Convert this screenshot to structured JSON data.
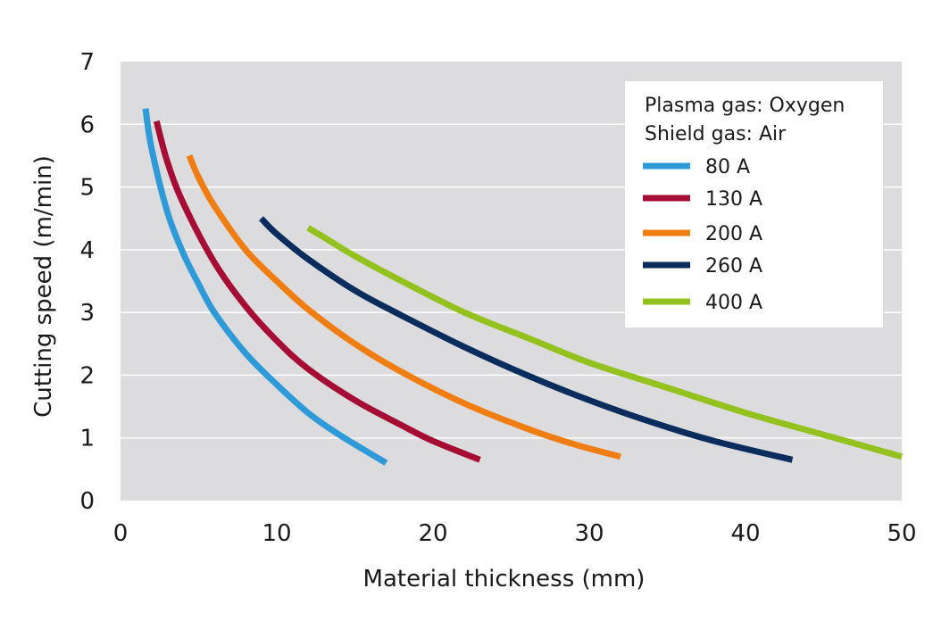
{
  "chart_data": {
    "type": "line",
    "xlabel": "Material thickness (mm)",
    "ylabel": "Cutting speed (m/min)",
    "xlim": [
      0,
      50
    ],
    "ylim": [
      0,
      7
    ],
    "xticks": [
      0,
      10,
      20,
      30,
      40,
      50
    ],
    "yticks": [
      0,
      1,
      2,
      3,
      4,
      5,
      6,
      7
    ],
    "grid": "horizontal",
    "background": "#dcdcde",
    "legend": {
      "placement": "top-right",
      "header_lines": [
        "Plasma gas: Oxygen",
        "Shield gas: Air"
      ]
    },
    "series": [
      {
        "name": "80 A",
        "color": "#2f9ad8",
        "points": [
          [
            1.6,
            6.25
          ],
          [
            2.0,
            5.6
          ],
          [
            3.0,
            4.6
          ],
          [
            4.0,
            3.95
          ],
          [
            5.0,
            3.45
          ],
          [
            6.0,
            3.0
          ],
          [
            8.0,
            2.35
          ],
          [
            10.0,
            1.85
          ],
          [
            12.0,
            1.4
          ],
          [
            14.0,
            1.05
          ],
          [
            17.0,
            0.6
          ]
        ]
      },
      {
        "name": "130 A",
        "color": "#a50d35",
        "points": [
          [
            2.3,
            6.05
          ],
          [
            3.0,
            5.4
          ],
          [
            4.0,
            4.75
          ],
          [
            6.0,
            3.8
          ],
          [
            8.0,
            3.1
          ],
          [
            10.0,
            2.55
          ],
          [
            12.0,
            2.1
          ],
          [
            15.0,
            1.6
          ],
          [
            18.0,
            1.2
          ],
          [
            20.0,
            0.95
          ],
          [
            23.0,
            0.65
          ]
        ]
      },
      {
        "name": "200 A",
        "color": "#f07d12",
        "points": [
          [
            4.4,
            5.5
          ],
          [
            5.0,
            5.15
          ],
          [
            6.0,
            4.7
          ],
          [
            8.0,
            4.0
          ],
          [
            10.0,
            3.5
          ],
          [
            12.0,
            3.05
          ],
          [
            15.0,
            2.5
          ],
          [
            18.0,
            2.05
          ],
          [
            22.0,
            1.55
          ],
          [
            26.0,
            1.15
          ],
          [
            29.0,
            0.9
          ],
          [
            32.0,
            0.7
          ]
        ]
      },
      {
        "name": "260 A",
        "color": "#0b2d5e",
        "points": [
          [
            9.0,
            4.5
          ],
          [
            10.0,
            4.25
          ],
          [
            12.0,
            3.85
          ],
          [
            15.0,
            3.35
          ],
          [
            18.0,
            2.95
          ],
          [
            22.0,
            2.45
          ],
          [
            26.0,
            2.0
          ],
          [
            30.0,
            1.6
          ],
          [
            34.0,
            1.25
          ],
          [
            38.0,
            0.95
          ],
          [
            43.0,
            0.65
          ]
        ]
      },
      {
        "name": "400 A",
        "color": "#93c11e",
        "points": [
          [
            12.0,
            4.35
          ],
          [
            13.0,
            4.2
          ],
          [
            15.0,
            3.9
          ],
          [
            18.0,
            3.5
          ],
          [
            22.0,
            3.0
          ],
          [
            26.0,
            2.6
          ],
          [
            30.0,
            2.2
          ],
          [
            35.0,
            1.8
          ],
          [
            40.0,
            1.4
          ],
          [
            45.0,
            1.05
          ],
          [
            50.0,
            0.7
          ]
        ]
      }
    ]
  }
}
